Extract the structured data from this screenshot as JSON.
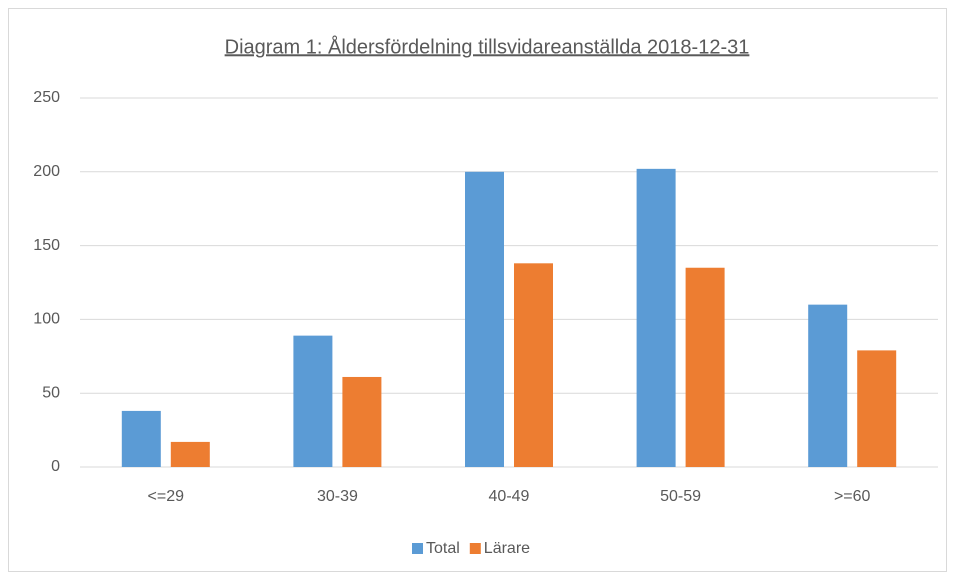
{
  "chart_data": {
    "type": "bar",
    "title": "Diagram 1: Åldersfördelning tillsvidareanställda 2018-12-31",
    "categories": [
      "<=29",
      "30-39",
      "40-49",
      "50-59",
      ">=60"
    ],
    "series": [
      {
        "name": "Total",
        "color": "#5b9bd5",
        "values": [
          38,
          89,
          200,
          202,
          110
        ]
      },
      {
        "name": "Lärare",
        "color": "#ed7d31",
        "values": [
          17,
          61,
          138,
          135,
          79
        ]
      }
    ],
    "ylim": [
      0,
      250
    ],
    "yticks": [
      0,
      50,
      100,
      150,
      200,
      250
    ],
    "grid": true,
    "legend": "bottom"
  }
}
